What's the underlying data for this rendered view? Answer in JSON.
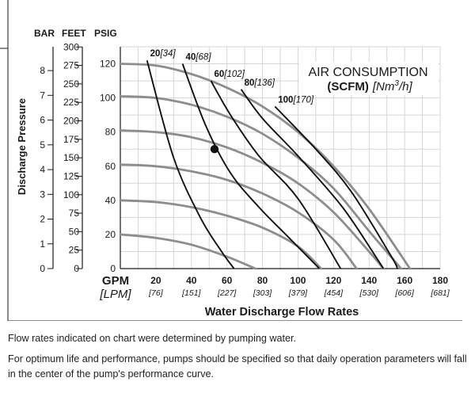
{
  "chart_data": {
    "type": "line",
    "title_line1": "AIR CONSUMPTION",
    "title_scfm": "(SCFM)",
    "title_unit_prefix": "[Nm",
    "title_unit_sup": "3",
    "title_unit_suffix": "/h]",
    "xlabel": "Water Discharge Flow Rates",
    "ylabel": "Discharge Pressure",
    "x_unit_primary": "GPM",
    "x_unit_secondary": "[LPM]",
    "x_ticks": [
      {
        "gpm": 20,
        "lpm": "[76]"
      },
      {
        "gpm": 40,
        "lpm": "[151]"
      },
      {
        "gpm": 60,
        "lpm": "[227]"
      },
      {
        "gpm": 80,
        "lpm": "[303]"
      },
      {
        "gpm": 100,
        "lpm": "[379]"
      },
      {
        "gpm": 120,
        "lpm": "[454]"
      },
      {
        "gpm": 140,
        "lpm": "[530]"
      },
      {
        "gpm": 160,
        "lpm": "[606]"
      },
      {
        "gpm": 180,
        "lpm": "[681]"
      }
    ],
    "xlim": [
      0,
      180
    ],
    "ylim_psig": [
      0,
      130
    ],
    "psig_ticks": [
      0,
      20,
      40,
      60,
      80,
      100,
      120
    ],
    "feet_ticks": [
      0,
      25,
      50,
      75,
      100,
      125,
      150,
      175,
      200,
      225,
      250,
      275,
      300
    ],
    "bar_ticks": [
      0,
      1,
      2,
      3,
      4,
      5,
      6,
      7,
      8
    ],
    "axis_header_bar": "BAR",
    "axis_header_feet": "FEET",
    "axis_header_psig": "PSIG",
    "pressure_curves": [
      {
        "supply_psig": 120,
        "points": [
          [
            0,
            120
          ],
          [
            20,
            119
          ],
          [
            40,
            114
          ],
          [
            60,
            106
          ],
          [
            80,
            95
          ],
          [
            100,
            80
          ],
          [
            120,
            60
          ],
          [
            140,
            35
          ],
          [
            163,
            0
          ]
        ]
      },
      {
        "supply_psig": 100,
        "points": [
          [
            0,
            101
          ],
          [
            20,
            100
          ],
          [
            40,
            96
          ],
          [
            60,
            89
          ],
          [
            80,
            79
          ],
          [
            100,
            65
          ],
          [
            120,
            47
          ],
          [
            140,
            22
          ],
          [
            158,
            0
          ]
        ]
      },
      {
        "supply_psig": 80,
        "points": [
          [
            0,
            81
          ],
          [
            20,
            80
          ],
          [
            40,
            77
          ],
          [
            60,
            71
          ],
          [
            80,
            62
          ],
          [
            100,
            50
          ],
          [
            120,
            33
          ],
          [
            140,
            10
          ],
          [
            148,
            0
          ]
        ]
      },
      {
        "supply_psig": 60,
        "points": [
          [
            0,
            61
          ],
          [
            20,
            60
          ],
          [
            40,
            57
          ],
          [
            60,
            52
          ],
          [
            80,
            44
          ],
          [
            100,
            33
          ],
          [
            120,
            17
          ],
          [
            133,
            0
          ]
        ]
      },
      {
        "supply_psig": 40,
        "points": [
          [
            0,
            40
          ],
          [
            20,
            39
          ],
          [
            40,
            36
          ],
          [
            60,
            31
          ],
          [
            80,
            24
          ],
          [
            100,
            13
          ],
          [
            113,
            0
          ]
        ]
      },
      {
        "supply_psig": 20,
        "points": [
          [
            0,
            20
          ],
          [
            20,
            18
          ],
          [
            40,
            14
          ],
          [
            60,
            7
          ],
          [
            76,
            0
          ]
        ]
      }
    ],
    "air_consumption_curves": [
      {
        "label_scfm": "20",
        "label_nm3h": "[34]",
        "points": [
          [
            15,
            122
          ],
          [
            30,
            65
          ],
          [
            45,
            30
          ],
          [
            57,
            10
          ],
          [
            64,
            0
          ]
        ]
      },
      {
        "label_scfm": "40",
        "label_nm3h": "[68]",
        "points": [
          [
            35,
            120
          ],
          [
            48,
            84
          ],
          [
            62,
            56
          ],
          [
            78,
            36
          ],
          [
            95,
            18
          ],
          [
            112,
            0
          ]
        ]
      },
      {
        "label_scfm": "60",
        "label_nm3h": "[102]",
        "points": [
          [
            51,
            110
          ],
          [
            62,
            90
          ],
          [
            78,
            66
          ],
          [
            100,
            41
          ],
          [
            124,
            0
          ]
        ]
      },
      {
        "label_scfm": "80",
        "label_nm3h": "[136]",
        "points": [
          [
            68,
            105
          ],
          [
            80,
            88
          ],
          [
            100,
            66
          ],
          [
            125,
            36
          ],
          [
            145,
            5
          ],
          [
            148,
            0
          ]
        ]
      },
      {
        "label_scfm": "100",
        "label_nm3h": "[170]",
        "points": [
          [
            87,
            95
          ],
          [
            110,
            70
          ],
          [
            130,
            45
          ],
          [
            152,
            8
          ],
          [
            156,
            0
          ]
        ]
      }
    ],
    "operating_point": {
      "gpm": 53,
      "psig": 70
    }
  },
  "notes": {
    "note1": "Flow rates indicated on chart were determined by pumping water.",
    "note2": "For optimum life and performance, pumps should be specified so that daily operation parameters will fall in the center of the pump's performance curve."
  }
}
